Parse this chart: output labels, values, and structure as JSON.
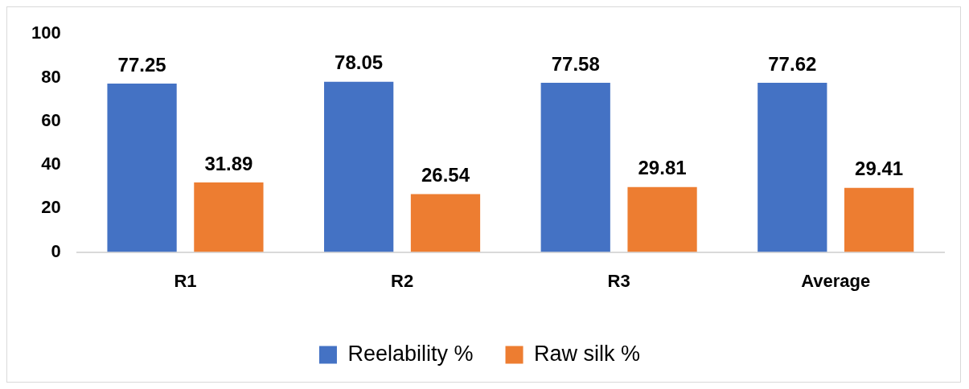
{
  "chart_data": {
    "type": "bar",
    "categories": [
      "R1",
      "R2",
      "R3",
      "Average"
    ],
    "series": [
      {
        "name": "Reelability %",
        "color": "#4472c4",
        "values": [
          77.25,
          78.05,
          77.58,
          77.62
        ]
      },
      {
        "name": "Raw silk %",
        "color": "#ed7d31",
        "values": [
          31.89,
          26.54,
          29.81,
          29.41
        ]
      }
    ],
    "ylim": [
      0,
      100
    ],
    "yticks": [
      0,
      20,
      40,
      60,
      80,
      100
    ],
    "grid": false,
    "legend": "bottom",
    "data_labels": true
  }
}
